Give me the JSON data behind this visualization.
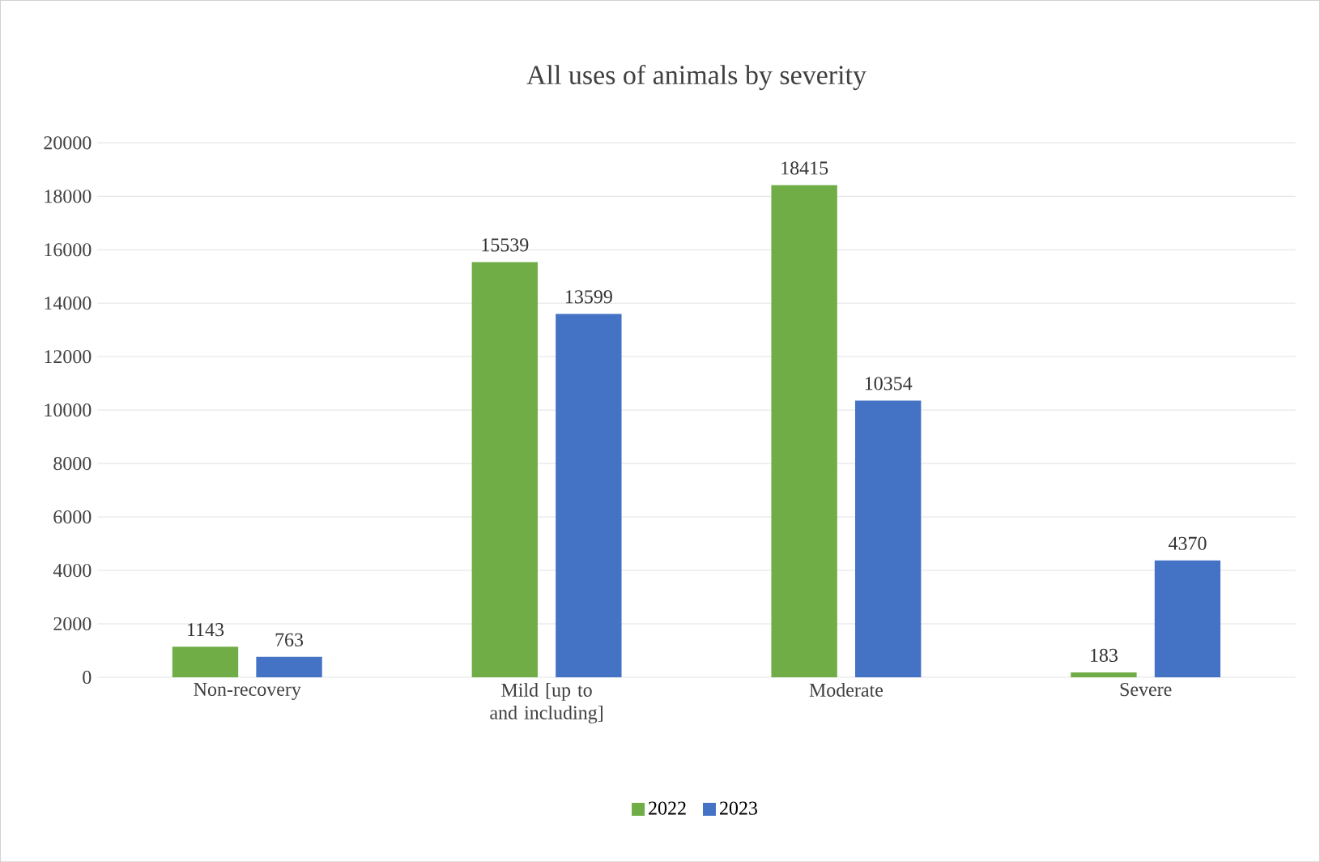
{
  "chart_data": {
    "type": "bar",
    "title": "All uses of animals by severity",
    "categories": [
      "Non-recovery",
      "Mild [up to and including]",
      "Moderate",
      "Severe"
    ],
    "series": [
      {
        "name": "2022",
        "color": "#70ad47",
        "values": [
          1143,
          15539,
          18415,
          183
        ]
      },
      {
        "name": "2023",
        "color": "#4472c4",
        "values": [
          763,
          13599,
          10354,
          4370
        ]
      }
    ],
    "ylim": [
      0,
      20000
    ],
    "yticks": [
      0,
      2000,
      4000,
      6000,
      8000,
      10000,
      12000,
      14000,
      16000,
      18000,
      20000
    ],
    "grid": "y",
    "legend": "bottom",
    "data_labels": true
  }
}
